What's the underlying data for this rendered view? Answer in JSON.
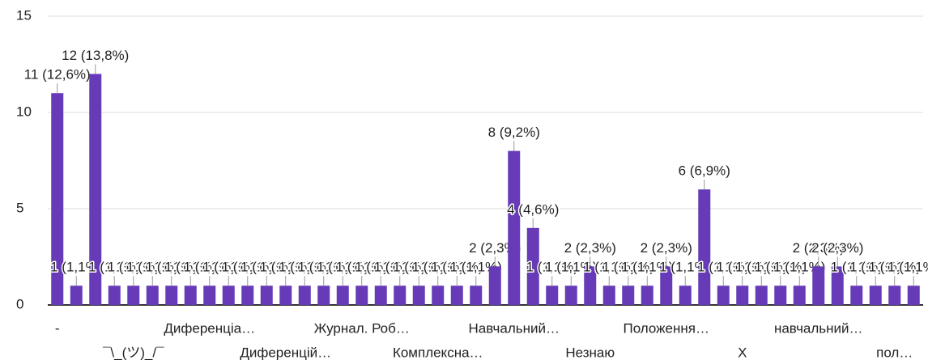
{
  "chart_data": {
    "type": "bar",
    "color": "#673ab7",
    "categories": [
      "-",
      null,
      null,
      null,
      "¯\\_(ツ)_/¯",
      null,
      null,
      null,
      "Диференціа…",
      null,
      null,
      null,
      "Диференцій…",
      null,
      null,
      null,
      "Журнал. Роб…",
      null,
      null,
      null,
      "Комплексна…",
      null,
      null,
      null,
      "Навчальний…",
      null,
      null,
      null,
      "Незнаю",
      null,
      null,
      null,
      "Положення…",
      null,
      null,
      null,
      "X",
      null,
      null,
      null,
      "навчальний…",
      null,
      null,
      null,
      "пол…",
      null
    ],
    "values": [
      11,
      1,
      12,
      1,
      1,
      1,
      1,
      1,
      1,
      1,
      1,
      1,
      1,
      1,
      1,
      1,
      1,
      1,
      1,
      1,
      1,
      1,
      1,
      2,
      8,
      4,
      1,
      1,
      2,
      1,
      1,
      1,
      2,
      1,
      6,
      1,
      1,
      1,
      1,
      1,
      2,
      2,
      1,
      1,
      1,
      1
    ],
    "value_labels": [
      "11 (12,6%)",
      "1 (1,1%)",
      "12 (13,8%)",
      "1 (1,1%)",
      "1 (1,1%)",
      "1 (1,1%)",
      "1 (1,1%)",
      "1 (1,1%)",
      "1 (1,1%)",
      "1 (1,1%)",
      "1 (1,1%)",
      "1 (1,1%)",
      "1 (1,1%)",
      "1 (1,1%)",
      "1 (1,1%)",
      "1 (1,1%)",
      "1 (1,1%)",
      "1 (1,1%)",
      "1 (1,1%)",
      "1 (1,1%)",
      "1 (1,1%)",
      "1 (1,1%)",
      "1 (1,1%)",
      "2 (2,3%)",
      "8 (9,2%)",
      "4 (4,6%)",
      "1 (1,1%)",
      "1 (1,1%)",
      "2 (2,3%)",
      "1 (1,1%)",
      "1 (1,1%)",
      "1 (1,1%)",
      "2 (2,3%)",
      "1 (1,1%)",
      "6 (6,9%)",
      "1 (1,1%)",
      "1 (1,1%)",
      "1 (1,1%)",
      "1 (1,1%)",
      "1 (1,1%)",
      "2 (2,3%)",
      "2 (2,3%)",
      "1 (1,1%)",
      "1 (1,1%)",
      "1 (1,1%)",
      "1 (1,1%)"
    ],
    "ylim": [
      0,
      15
    ],
    "yticks": [
      0,
      5,
      10,
      15
    ],
    "grid": true
  }
}
